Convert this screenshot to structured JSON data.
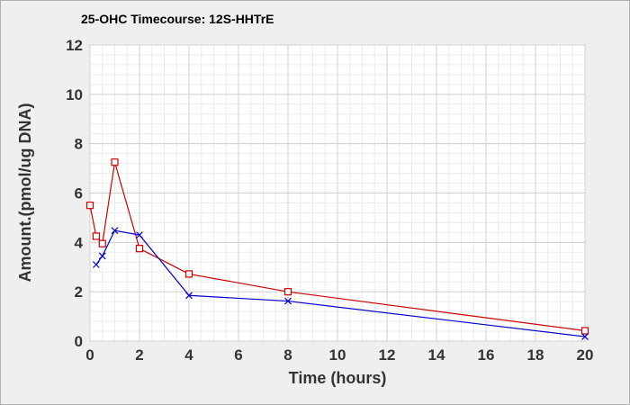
{
  "chart_data": {
    "type": "line",
    "title": "25-OHC Timecourse: 12S-HHTrE",
    "xlabel": "Time (hours)",
    "ylabel": "Amount.(pmol/ug DNA)",
    "xlim": [
      0,
      20
    ],
    "ylim": [
      0,
      12
    ],
    "xticks": [
      0,
      2,
      4,
      6,
      8,
      10,
      12,
      14,
      16,
      18,
      20
    ],
    "yticks": [
      0,
      2,
      4,
      6,
      8,
      10,
      12
    ],
    "grid": true,
    "series": [
      {
        "color": "#cc0000",
        "marker": "square",
        "x": [
          0,
          0.25,
          0.5,
          1,
          2,
          4,
          8,
          20
        ],
        "y": [
          5.5,
          4.25,
          3.95,
          7.25,
          3.75,
          2.72,
          2.0,
          0.42
        ]
      },
      {
        "color": "#0000cc",
        "marker": "x",
        "x": [
          0.25,
          0.5,
          1,
          2,
          4,
          8,
          20
        ],
        "y": [
          3.1,
          3.45,
          4.48,
          4.3,
          1.85,
          1.62,
          0.18
        ]
      }
    ]
  }
}
